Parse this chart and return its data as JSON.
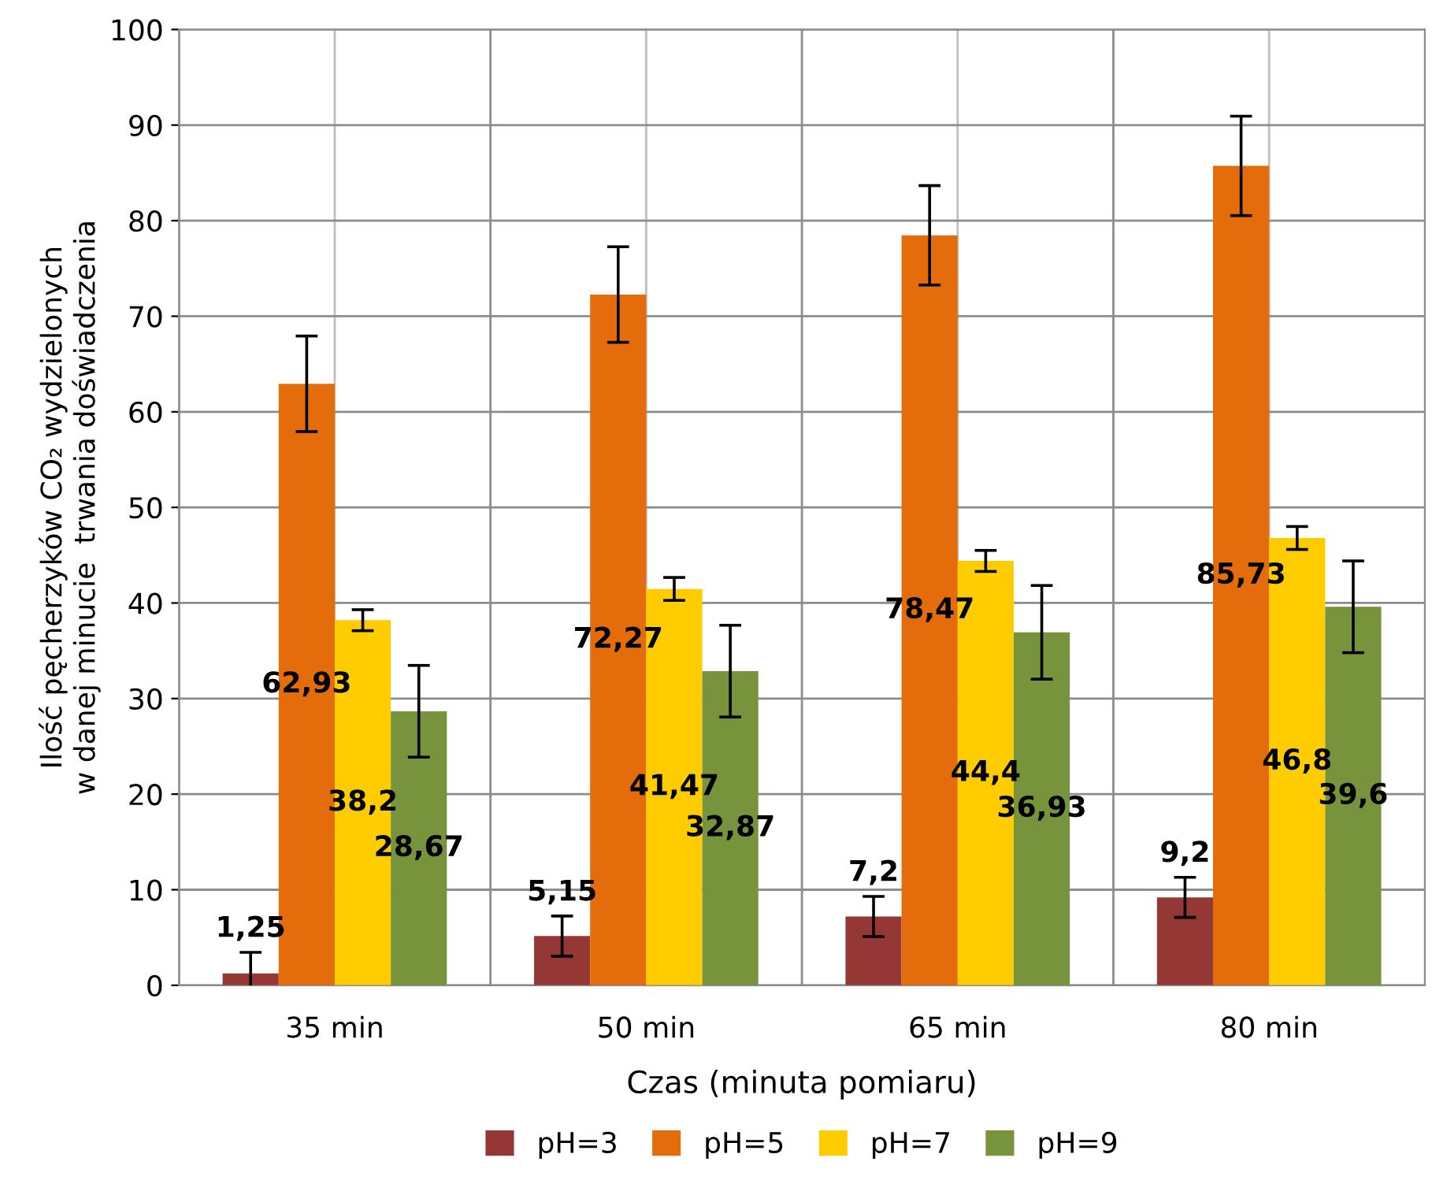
{
  "chart_data": {
    "type": "bar",
    "xlabel": "Czas (minuta pomiaru)",
    "ylabel": "Ilość pęcherzyków CO₂ wydzielonych\nw danej minucie  trwania doświadczenia",
    "categories": [
      "35 min",
      "50 min",
      "65 min",
      "80 min"
    ],
    "series": [
      {
        "name": "pH=3",
        "color": "#953735",
        "values": [
          1.25,
          5.15,
          7.2,
          9.2
        ],
        "errors": [
          2.2,
          2.1,
          2.1,
          2.1
        ],
        "value_labels": [
          "1,25",
          "5,15",
          "7,2",
          "9,2"
        ]
      },
      {
        "name": "pH=5",
        "color": "#e46c0a",
        "values": [
          62.93,
          72.27,
          78.47,
          85.73
        ],
        "errors": [
          5,
          5,
          5.2,
          5.2
        ],
        "value_labels": [
          "62,93",
          "72,27",
          "78,47",
          "85,73"
        ]
      },
      {
        "name": "pH=7",
        "color": "#ffcc00",
        "values": [
          38.2,
          41.47,
          44.4,
          46.8
        ],
        "errors": [
          1.1,
          1.2,
          1.1,
          1.2
        ],
        "value_labels": [
          "38,2",
          "41,47",
          "44,4",
          "46,8"
        ]
      },
      {
        "name": "pH=9",
        "color": "#77933c",
        "values": [
          28.67,
          32.87,
          36.93,
          39.6
        ],
        "errors": [
          4.8,
          4.8,
          4.9,
          4.8
        ],
        "value_labels": [
          "28,67",
          "32,87",
          "36,93",
          "39,6"
        ]
      }
    ],
    "ylim": [
      0,
      100
    ],
    "yticks": [
      0,
      10,
      20,
      30,
      40,
      50,
      60,
      70,
      80,
      90,
      100
    ],
    "grid": true,
    "legend": "bottom"
  }
}
